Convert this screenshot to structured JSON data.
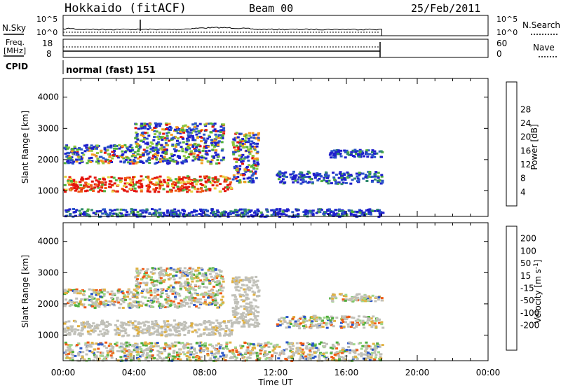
{
  "header": {
    "station": "Hokkaido (fitACF)",
    "beam": "Beam 00",
    "date": "25/Feb/2011"
  },
  "colors": {
    "bar_scale": [
      "#1f1fcc",
      "#2a55c8",
      "#2f8a6e",
      "#4fae3c",
      "#8fc83c",
      "#e7d23c",
      "#f59a1e",
      "#ef5a14",
      "#e3140c"
    ],
    "velocity_scale": [
      "#1f1fcc",
      "#2a55c8",
      "#2f8a6e",
      "#4fae3c",
      "#9ed68a",
      "#c8c8c0",
      "#e0b040",
      "#f59a1e",
      "#ef5a14",
      "#e3140c"
    ],
    "ground_scatter": "#c0c0b8"
  },
  "panels": {
    "nsky": {
      "left_label": "N.Sky",
      "left_ticks": [
        "10^5",
        "10^0"
      ],
      "right_ticks": [
        "10^5",
        "10^0"
      ],
      "right_label": "N.Search",
      "right_legend_style": "dotted"
    },
    "freq": {
      "left_label_line1": "Freq.",
      "left_label_line2": "[MHz]",
      "left_ticks": [
        "18",
        "8"
      ],
      "right_ticks": [
        "60",
        "0"
      ],
      "right_label": "Nave",
      "right_legend_style": "dotted"
    },
    "cpid": {
      "label": "CPID",
      "value": "normal (fast) 151"
    }
  },
  "chart_data": [
    {
      "type": "heatmap",
      "name": "Power",
      "ylabel": "Slant Range [km]",
      "xlabel": "Time UT",
      "x_range": [
        "00:00",
        "24:00"
      ],
      "ylim": [
        180,
        4600
      ],
      "y_ticks": [
        1000,
        2000,
        3000,
        4000
      ],
      "x_ticks": [
        "00:00",
        "04:00",
        "08:00",
        "12:00",
        "16:00",
        "20:00",
        "00:00"
      ],
      "colorbar_title": "Power [dB]",
      "colorbar_ticks": [
        4,
        8,
        12,
        16,
        20,
        24,
        28
      ],
      "data_end": "18:00",
      "scatter_bands": [
        {
          "t0": 0.0,
          "t1": 9.5,
          "r0": 1000,
          "r1": 1500,
          "level": "high"
        },
        {
          "t0": 9.5,
          "t1": 11.0,
          "r0": 1300,
          "r1": 2900,
          "level": "mixed"
        },
        {
          "t0": 0.0,
          "t1": 9.0,
          "r0": 1900,
          "r1": 2500,
          "level": "mixed"
        },
        {
          "t0": 4.0,
          "t1": 9.0,
          "r0": 2500,
          "r1": 3200,
          "level": "mixed"
        },
        {
          "t0": 12.0,
          "t1": 18.0,
          "r0": 1250,
          "r1": 1650,
          "level": "low"
        },
        {
          "t0": 15.0,
          "t1": 18.0,
          "r0": 2100,
          "r1": 2350,
          "level": "low"
        },
        {
          "t0": 0.0,
          "t1": 18.0,
          "r0": 180,
          "r1": 450,
          "level": "low"
        }
      ]
    },
    {
      "type": "heatmap",
      "name": "Velocity",
      "ylabel": "Slant Range [km]",
      "xlabel": "Time UT",
      "x_range": [
        "00:00",
        "24:00"
      ],
      "ylim": [
        180,
        4600
      ],
      "y_ticks": [
        1000,
        2000,
        3000,
        4000
      ],
      "x_ticks": [
        "00:00",
        "04:00",
        "08:00",
        "12:00",
        "16:00",
        "20:00",
        "00:00"
      ],
      "colorbar_title": "Velocity [m s^-1]",
      "colorbar_ticks": [
        200,
        100,
        50,
        15,
        -15,
        -50,
        -100,
        -200
      ],
      "data_end": "18:00",
      "scatter_bands": [
        {
          "t0": 0.0,
          "t1": 9.5,
          "r0": 1000,
          "r1": 1500,
          "level": "ground"
        },
        {
          "t0": 9.5,
          "t1": 11.0,
          "r0": 1300,
          "r1": 2900,
          "level": "ground"
        },
        {
          "t0": 0.0,
          "t1": 9.0,
          "r0": 1900,
          "r1": 2500,
          "level": "mixed"
        },
        {
          "t0": 4.0,
          "t1": 9.0,
          "r0": 2500,
          "r1": 3200,
          "level": "mixed"
        },
        {
          "t0": 12.0,
          "t1": 18.0,
          "r0": 1250,
          "r1": 1650,
          "level": "mixed"
        },
        {
          "t0": 15.0,
          "t1": 18.0,
          "r0": 2100,
          "r1": 2350,
          "level": "mixed"
        },
        {
          "t0": 0.0,
          "t1": 18.0,
          "r0": 180,
          "r1": 800,
          "level": "mixed"
        }
      ]
    }
  ]
}
